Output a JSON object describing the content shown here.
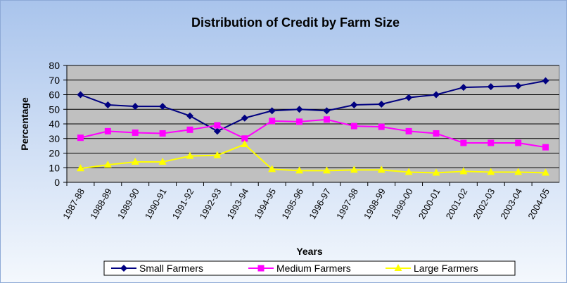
{
  "chart_data": {
    "type": "line",
    "title": "Distribution of Credit by Farm Size",
    "x_label": "Years",
    "y_label": "Percentage",
    "categories": [
      "1987-88",
      "1988-89",
      "1989-90",
      "1990-91",
      "1991-92",
      "1992-93",
      "1993-94",
      "1994-95",
      "1995-96",
      "1996-97",
      "1997-98",
      "1998-99",
      "1999-00",
      "2000-01",
      "2001-02",
      "2002-03",
      "2003-04",
      "2004-05"
    ],
    "series": [
      {
        "name": "Small Farmers",
        "color": "#000080",
        "marker": "diamond",
        "values": [
          60,
          53,
          52,
          52,
          45.5,
          35,
          44,
          49,
          50,
          49,
          53,
          53.5,
          58,
          60,
          65,
          65.5,
          66,
          69.5
        ]
      },
      {
        "name": "Medium Farmers",
        "color": "#ff00ff",
        "marker": "square",
        "values": [
          30.5,
          35,
          34,
          33.5,
          36,
          39,
          30,
          42,
          41.5,
          43,
          38.5,
          38,
          35,
          33.5,
          27,
          27,
          27,
          24
        ]
      },
      {
        "name": "Large Farmers",
        "color": "#ffff00",
        "marker": "triangle",
        "values": [
          9.5,
          12,
          14,
          14,
          18,
          18.5,
          26,
          9,
          8,
          8,
          8.5,
          8.5,
          7,
          6.5,
          7.5,
          7,
          7,
          6.5
        ]
      }
    ],
    "ylim": [
      0,
      80
    ],
    "yticks": [
      0,
      10,
      20,
      30,
      40,
      50,
      60,
      70,
      80
    ],
    "grid": true,
    "legend": "bottom"
  }
}
